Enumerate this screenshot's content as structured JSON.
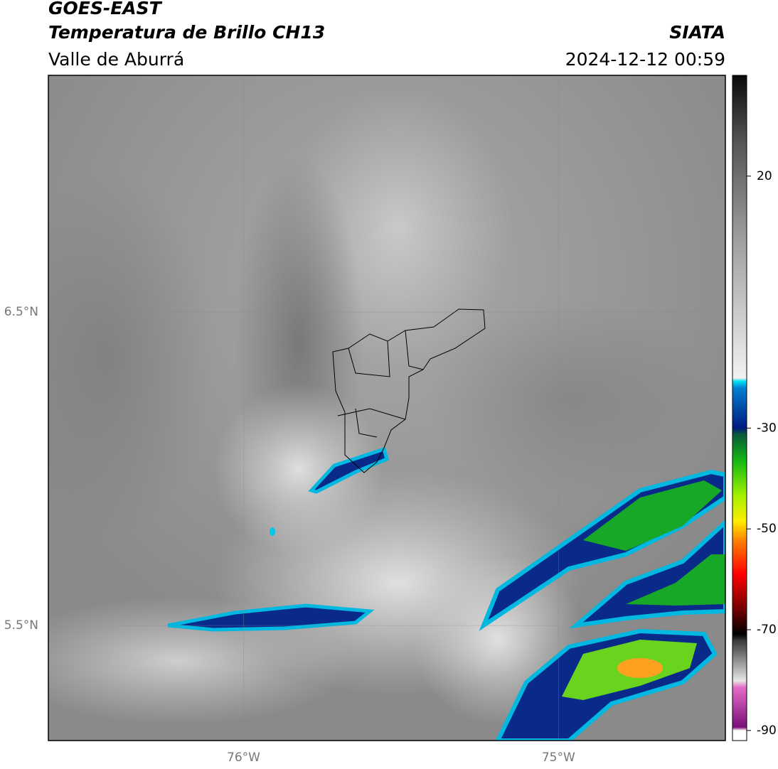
{
  "header": {
    "title": "GOES-EAST",
    "subtitle": "Temperatura de Brillo CH13",
    "region": "Valle de Aburrá",
    "source": "SIATA",
    "datetime": "2024-12-12 00:59"
  },
  "map": {
    "xlim": [
      -76.62,
      -74.47
    ],
    "ylim": [
      5.133,
      7.255
    ],
    "yticks": [
      {
        "value": 6.5,
        "label": "6.5°N"
      },
      {
        "value": 5.5,
        "label": "5.5°N"
      }
    ],
    "xticks": [
      {
        "value": -76,
        "label": "76°W"
      },
      {
        "value": -75,
        "label": "75°W"
      }
    ]
  },
  "colorbar": {
    "lim": [
      -92,
      40
    ],
    "ticks": [
      20,
      -30,
      -50,
      -70,
      -90
    ]
  }
}
